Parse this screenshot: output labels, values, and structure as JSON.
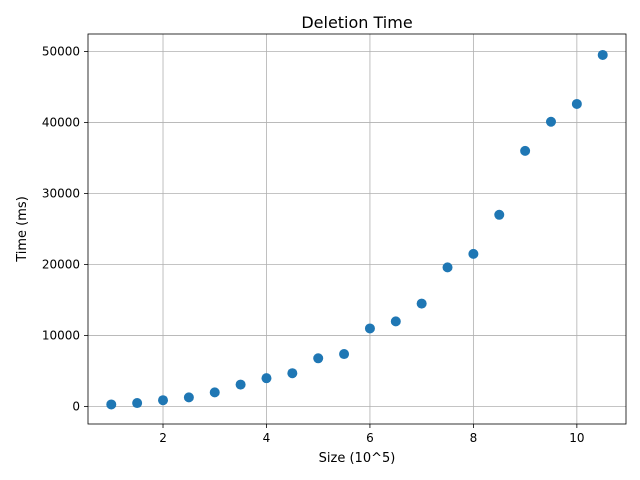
{
  "chart_data": {
    "type": "scatter",
    "title": "Deletion Time",
    "xlabel": "Size (10^5)",
    "ylabel": "Time (ms)",
    "xlim": [
      0.55,
      10.95
    ],
    "ylim": [
      -2450,
      52450
    ],
    "grid": true,
    "marker_color": "#1f77b4",
    "x_ticks": [
      2,
      4,
      6,
      8,
      10
    ],
    "y_ticks": [
      0,
      10000,
      20000,
      30000,
      40000,
      50000
    ],
    "x_tick_labels": [
      "2",
      "4",
      "6",
      "8",
      "10"
    ],
    "y_tick_labels": [
      "0",
      "10000",
      "20000",
      "30000",
      "40000",
      "50000"
    ],
    "points": {
      "x": [
        1.0,
        1.5,
        2.0,
        2.5,
        3.0,
        3.5,
        4.0,
        4.5,
        5.0,
        5.5,
        6.0,
        6.5,
        7.0,
        7.5,
        8.0,
        8.5,
        9.0,
        9.5,
        10.0,
        10.5
      ],
      "y": [
        300,
        500,
        900,
        1300,
        2000,
        3100,
        4000,
        4700,
        6800,
        7400,
        11000,
        12000,
        14500,
        19600,
        21500,
        27000,
        36000,
        40100,
        42600,
        49500
      ]
    }
  }
}
